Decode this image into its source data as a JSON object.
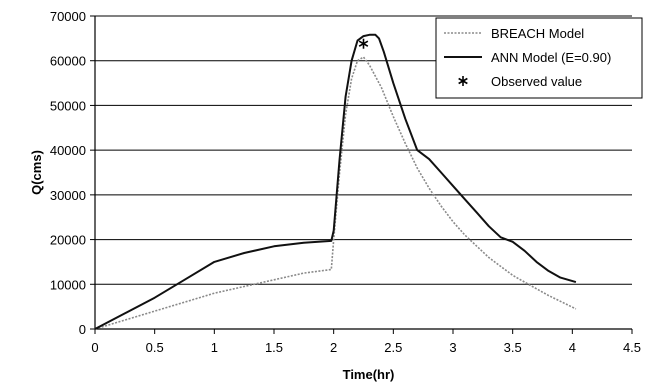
{
  "chart_data": {
    "type": "line",
    "title": "",
    "xlabel": "Time(hr)",
    "ylabel": "Q(cms)",
    "xlim": [
      0,
      4.5
    ],
    "ylim": [
      0,
      70000
    ],
    "x_ticks": [
      "0",
      "0.5",
      "1",
      "1.5",
      "2",
      "2.5",
      "3",
      "3.5",
      "4",
      "4.5"
    ],
    "y_ticks": [
      "0",
      "10000",
      "20000",
      "30000",
      "40000",
      "50000",
      "60000",
      "70000"
    ],
    "grid": "horizontal",
    "legend_position": "top-right",
    "colors": {
      "breach": "#8a8a8a",
      "ann": "#111111",
      "observed": "#000000",
      "grid": "#000000"
    },
    "series": [
      {
        "name": "BREACH Model",
        "x": [
          0,
          0.25,
          0.5,
          0.75,
          1.0,
          1.25,
          1.5,
          1.75,
          1.98,
          2.0,
          2.05,
          2.1,
          2.15,
          2.2,
          2.25,
          2.3,
          2.4,
          2.5,
          2.6,
          2.7,
          2.8,
          2.9,
          3.0,
          3.1,
          3.2,
          3.3,
          3.4,
          3.5,
          3.6,
          3.7,
          3.8,
          3.9,
          4.03
        ],
        "y": [
          0,
          2000,
          4000,
          6000,
          8000,
          9500,
          11000,
          12500,
          13300,
          20000,
          35000,
          48000,
          56000,
          60000,
          60800,
          59000,
          54000,
          47500,
          41500,
          36000,
          31500,
          27500,
          24000,
          21000,
          18500,
          16000,
          14000,
          12000,
          10500,
          9000,
          7500,
          6200,
          4500
        ]
      },
      {
        "name": "ANN Model (E=0.90)",
        "x": [
          0,
          0.25,
          0.5,
          0.75,
          1.0,
          1.25,
          1.5,
          1.75,
          1.98,
          2.0,
          2.05,
          2.1,
          2.15,
          2.2,
          2.25,
          2.3,
          2.35,
          2.38,
          2.42,
          2.5,
          2.6,
          2.7,
          2.8,
          2.9,
          3.0,
          3.1,
          3.2,
          3.3,
          3.4,
          3.5,
          3.6,
          3.7,
          3.8,
          3.9,
          4.03
        ],
        "y": [
          0,
          3500,
          7000,
          11000,
          15000,
          17000,
          18500,
          19300,
          19700,
          22000,
          38000,
          52000,
          60000,
          64500,
          65500,
          65800,
          65800,
          65000,
          62000,
          55000,
          47000,
          40000,
          38000,
          35000,
          32000,
          29000,
          26000,
          23000,
          20500,
          19500,
          17500,
          15000,
          13000,
          11500,
          10500
        ]
      }
    ],
    "observed": {
      "name": "Observed value",
      "x": [
        2.25
      ],
      "y": [
        63800
      ]
    }
  }
}
